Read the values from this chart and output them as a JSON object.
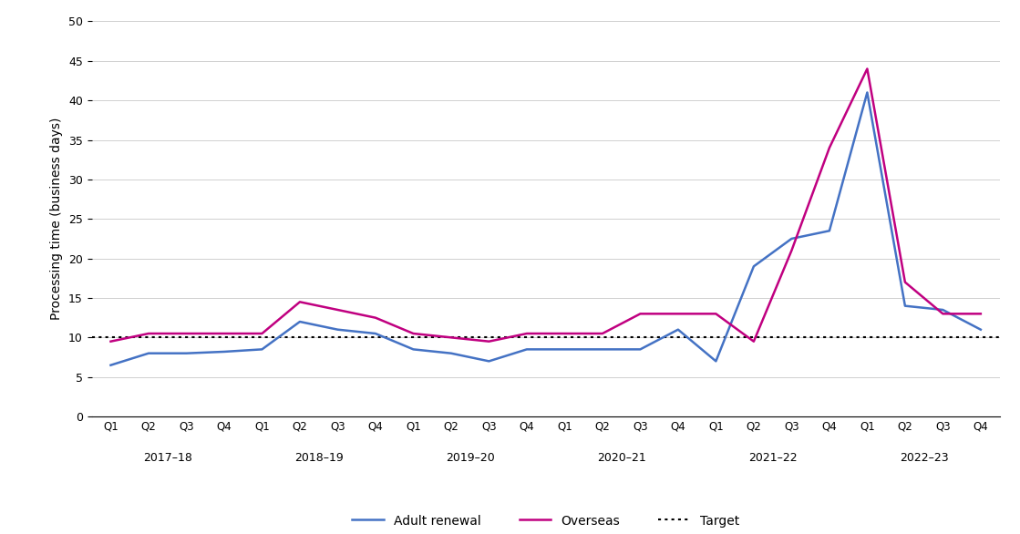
{
  "adult_renewal": [
    6.5,
    8,
    8,
    8.2,
    8.5,
    12,
    11,
    10.5,
    8.5,
    8,
    7,
    8.5,
    8.5,
    8.5,
    8.5,
    11,
    7,
    19,
    22.5,
    23.5,
    41,
    14,
    13.5,
    11
  ],
  "overseas": [
    9.5,
    10.5,
    10.5,
    10.5,
    10.5,
    14.5,
    13.5,
    12.5,
    10.5,
    10,
    9.5,
    10.5,
    10.5,
    10.5,
    13,
    13,
    13,
    9.5,
    21,
    34,
    44,
    17,
    13,
    13
  ],
  "target": 10,
  "adult_renewal_color": "#4472C4",
  "overseas_color": "#C00080",
  "target_color": "#000000",
  "ylabel": "Processing time (business days)",
  "ylim": [
    0,
    50
  ],
  "yticks": [
    0,
    5,
    10,
    15,
    20,
    25,
    30,
    35,
    40,
    45,
    50
  ],
  "q_labels": [
    "Q1",
    "Q2",
    "Q3",
    "Q4",
    "Q1",
    "Q2",
    "Q3",
    "Q4",
    "Q1",
    "Q2",
    "Q3",
    "Q4",
    "Q1",
    "Q2",
    "Q3",
    "Q4",
    "Q1",
    "Q2",
    "Q3",
    "Q4",
    "Q1",
    "Q2",
    "Q3",
    "Q4"
  ],
  "year_labels": [
    "2017–18",
    "2018–19",
    "2019–20",
    "2020–21",
    "2021–22",
    "2022–23"
  ],
  "year_positions": [
    1.5,
    5.5,
    9.5,
    13.5,
    17.5,
    21.5
  ],
  "legend_adult": "Adult renewal",
  "legend_overseas": "Overseas",
  "legend_target": "Target",
  "background_color": "#ffffff",
  "grid_color": "#d0d0d0"
}
